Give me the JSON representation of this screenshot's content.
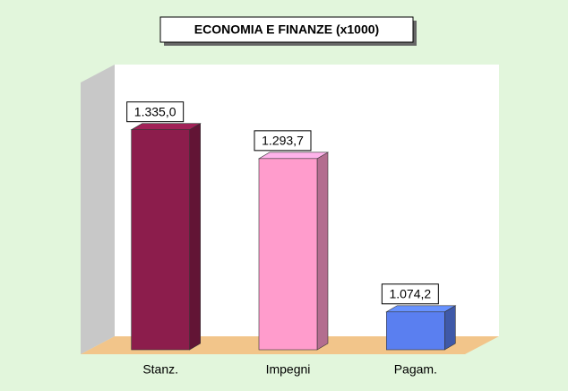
{
  "chart_data": {
    "type": "bar3d",
    "title": "ECONOMIA E FINANZE (x1000)",
    "categories": [
      "Stanz.",
      "Impegni",
      "Pagam."
    ],
    "values": [
      1335.0,
      1293.7,
      1074.2
    ],
    "value_labels": [
      "1.335,0",
      "1.293,7",
      "1.074,2"
    ],
    "colors": [
      "#8c1d4c",
      "#ff9ccc",
      "#5a7ff0"
    ],
    "ylim": [
      1020,
      1350
    ]
  }
}
